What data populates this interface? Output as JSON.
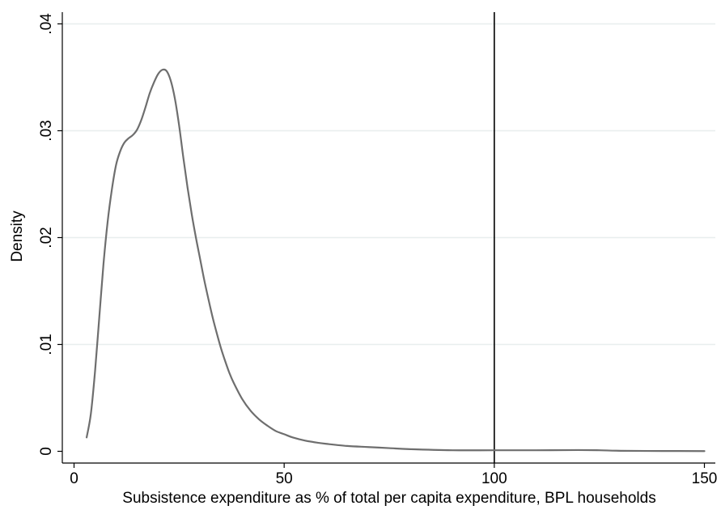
{
  "chart_data": {
    "type": "line",
    "title": "",
    "xlabel": "Subsistence expenditure as % of total per capita expenditure, BPL households",
    "ylabel": "Density",
    "xlim": [
      0,
      150
    ],
    "ylim": [
      0,
      0.04
    ],
    "x_ticks": [
      0,
      50,
      100,
      150
    ],
    "x_tick_labels": [
      "0",
      "50",
      "100",
      "150"
    ],
    "y_ticks": [
      0,
      0.01,
      0.02,
      0.03,
      0.04
    ],
    "y_tick_labels": [
      "0",
      ".01",
      ".02",
      ".03",
      ".04"
    ],
    "grid": true,
    "reference_line": {
      "x": 100
    },
    "series": [
      {
        "x": [
          3,
          4,
          5,
          6,
          7,
          8,
          9,
          10,
          11,
          12,
          13,
          14,
          15,
          16,
          17,
          18,
          19,
          20,
          21,
          22,
          23,
          24,
          25,
          26,
          27,
          28,
          29,
          30,
          31,
          32,
          33,
          34,
          35,
          36,
          37,
          38,
          40,
          42,
          44,
          46,
          48,
          50,
          52,
          55,
          58,
          60,
          65,
          70,
          75,
          80,
          90,
          100,
          110,
          120,
          125,
          130,
          140,
          150
        ],
        "y": [
          0.0013,
          0.0035,
          0.0075,
          0.0125,
          0.0175,
          0.0215,
          0.0245,
          0.0268,
          0.0281,
          0.0289,
          0.0293,
          0.0296,
          0.0301,
          0.031,
          0.0322,
          0.0335,
          0.0345,
          0.0353,
          0.0357,
          0.0356,
          0.0347,
          0.033,
          0.0305,
          0.0275,
          0.0247,
          0.0222,
          0.02,
          0.018,
          0.016,
          0.0142,
          0.0125,
          0.011,
          0.0096,
          0.0084,
          0.0073,
          0.0064,
          0.0049,
          0.0038,
          0.003,
          0.0024,
          0.0019,
          0.0016,
          0.0013,
          0.001,
          0.0008,
          0.0007,
          0.0005,
          0.0004,
          0.0003,
          0.0002,
          0.0001,
          0.0001,
          0.0001,
          0.00012,
          0.0001,
          5e-05,
          3e-05,
          2e-05
        ]
      }
    ]
  },
  "colors": {
    "curve": "#6e6e6e",
    "reference_line": "#000000",
    "grid": "#e8eeee",
    "axis": "#000000"
  }
}
